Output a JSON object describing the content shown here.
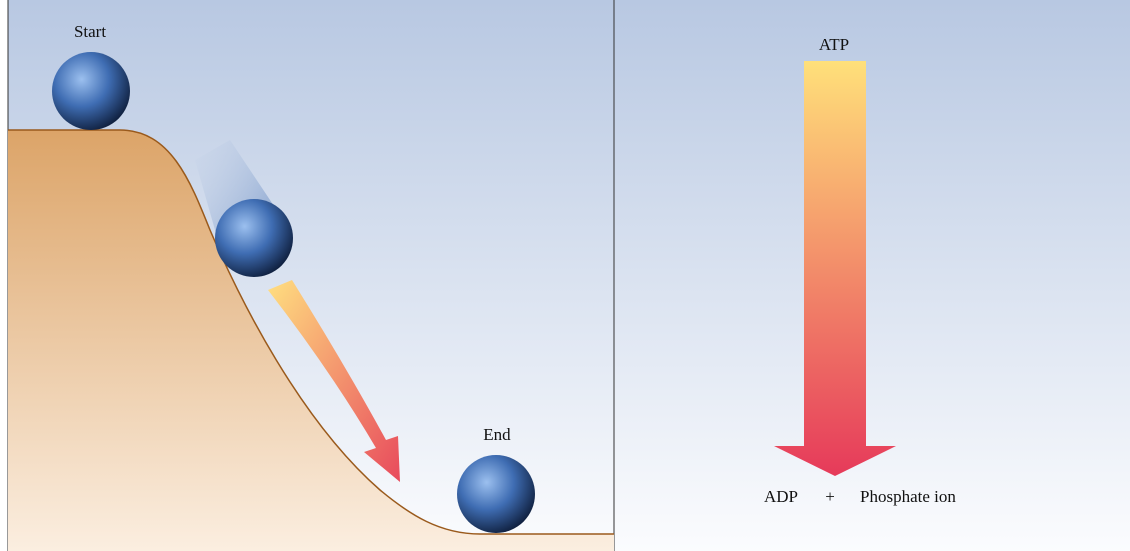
{
  "left_panel": {
    "start_label": "Start",
    "end_label": "End"
  },
  "right_panel": {
    "top_label": "ATP",
    "bottom_label": "ADP",
    "plus": "+",
    "product_label": "Phosphate ion"
  }
}
